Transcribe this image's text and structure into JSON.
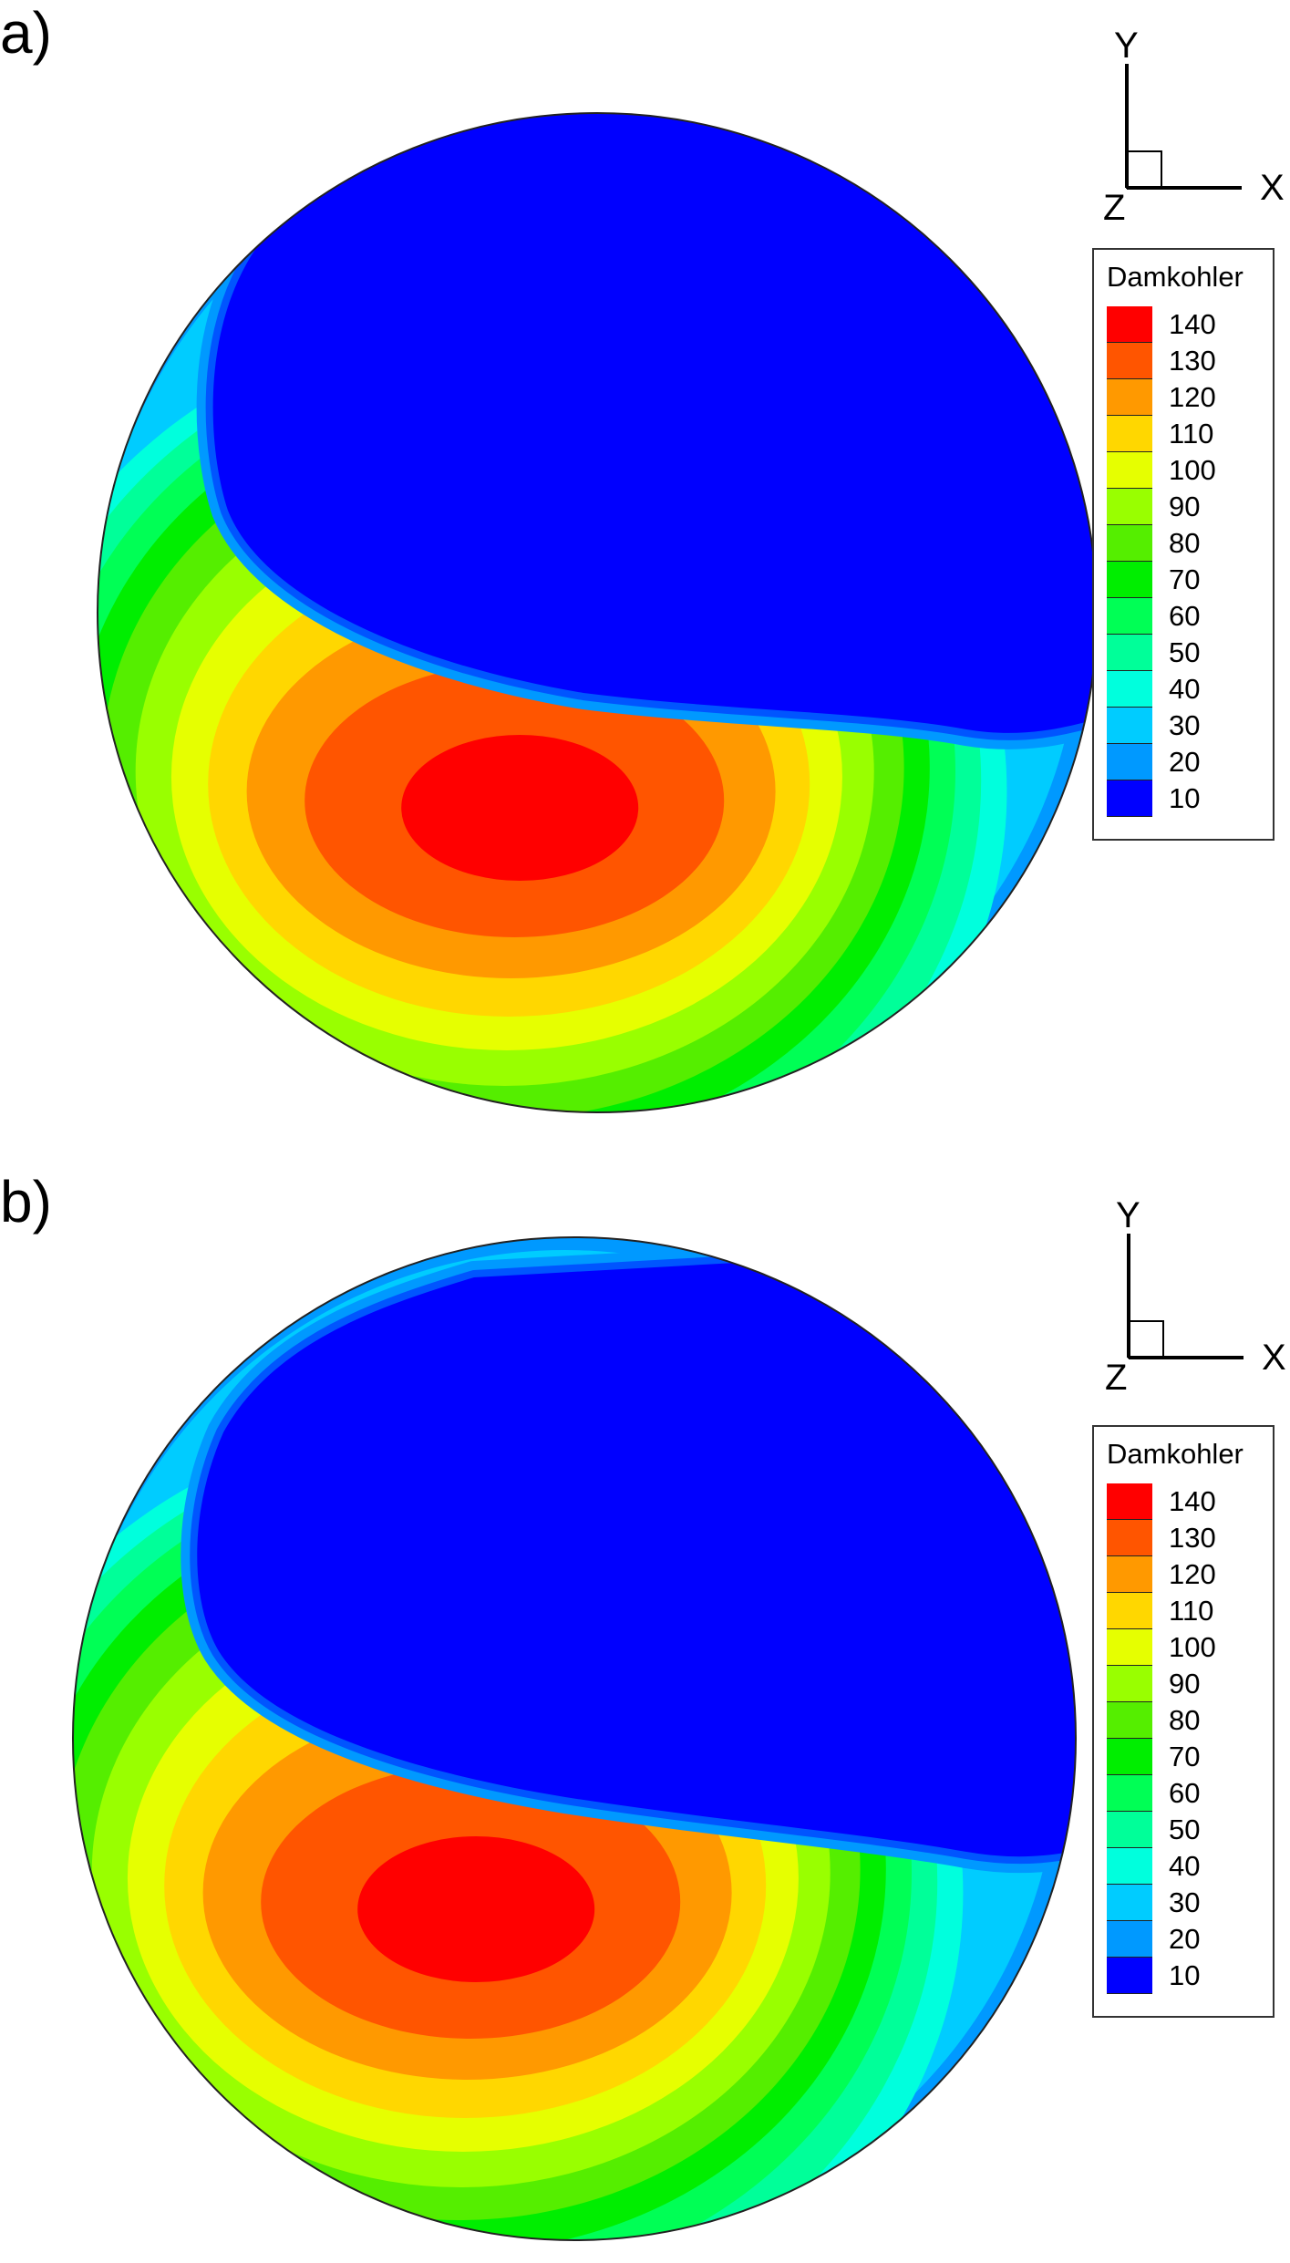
{
  "chart_data": [
    {
      "type": "heatmap",
      "panel_label": "a)",
      "legend_title": "Damkohler",
      "levels": [
        140,
        130,
        120,
        110,
        100,
        90,
        80,
        70,
        60,
        50,
        40,
        30,
        20,
        10
      ],
      "axes": {
        "x": "X",
        "y": "Y",
        "z": "Z"
      },
      "legend_placement": "right",
      "grid": false
    },
    {
      "type": "heatmap",
      "panel_label": "b)",
      "legend_title": "Damkohler",
      "levels": [
        140,
        130,
        120,
        110,
        100,
        90,
        80,
        70,
        60,
        50,
        40,
        30,
        20,
        10
      ],
      "axes": {
        "x": "X",
        "y": "Y",
        "z": "Z"
      },
      "legend_placement": "right",
      "grid": false
    }
  ],
  "colors": {
    "140": "#ff0000",
    "130": "#ff5500",
    "120": "#ff9900",
    "110": "#ffd700",
    "100": "#e6ff00",
    "90": "#99ff00",
    "80": "#55ee00",
    "70": "#00ee00",
    "60": "#00ff55",
    "50": "#00ff99",
    "40": "#00ffdd",
    "30": "#00ccff",
    "20": "#0099ff",
    "15": "#0055ff",
    "10": "#0000ff"
  }
}
